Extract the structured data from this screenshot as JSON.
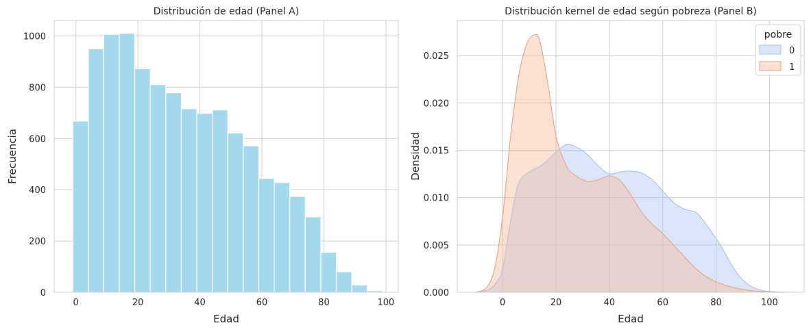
{
  "chart_data": [
    {
      "type": "bar",
      "title": "Distribución de edad (Panel A)",
      "xlabel": "Edad",
      "ylabel": "Frecuencia",
      "xlim": [
        -7,
        104
      ],
      "ylim": [
        0,
        1060
      ],
      "xticks": [
        0,
        20,
        40,
        60,
        80,
        100
      ],
      "yticks": [
        0,
        200,
        400,
        600,
        800,
        1000
      ],
      "grid": true,
      "bar_color": "#A4D8EE",
      "bins": [
        {
          "start": -1,
          "end": 4,
          "value": 668
        },
        {
          "start": 4,
          "end": 9,
          "value": 950
        },
        {
          "start": 9,
          "end": 14,
          "value": 1006
        },
        {
          "start": 14,
          "end": 19,
          "value": 1010
        },
        {
          "start": 19,
          "end": 24,
          "value": 872
        },
        {
          "start": 24,
          "end": 29,
          "value": 810
        },
        {
          "start": 29,
          "end": 34,
          "value": 778
        },
        {
          "start": 34,
          "end": 39,
          "value": 716
        },
        {
          "start": 39,
          "end": 44,
          "value": 698
        },
        {
          "start": 44,
          "end": 49,
          "value": 711
        },
        {
          "start": 49,
          "end": 54,
          "value": 621
        },
        {
          "start": 54,
          "end": 59,
          "value": 571
        },
        {
          "start": 59,
          "end": 64,
          "value": 444
        },
        {
          "start": 64,
          "end": 69,
          "value": 428
        },
        {
          "start": 69,
          "end": 74,
          "value": 374
        },
        {
          "start": 74,
          "end": 79,
          "value": 294
        },
        {
          "start": 79,
          "end": 84,
          "value": 156
        },
        {
          "start": 84,
          "end": 89,
          "value": 80
        },
        {
          "start": 89,
          "end": 94,
          "value": 28
        },
        {
          "start": 94,
          "end": 99,
          "value": 6
        }
      ]
    },
    {
      "type": "area",
      "title": "Distribución kernel de edad según pobreza (Panel B)",
      "xlabel": "Edad",
      "ylabel": "Densidad",
      "xlim": [
        -17,
        113
      ],
      "ylim": [
        0,
        0.0287
      ],
      "xticks": [
        0,
        20,
        40,
        60,
        80,
        100
      ],
      "ytick_labels": [
        "0.000",
        "0.005",
        "0.010",
        "0.015",
        "0.020",
        "0.025"
      ],
      "yticks": [
        0,
        0.005,
        0.01,
        0.015,
        0.02,
        0.025
      ],
      "grid": true,
      "legend": {
        "title": "pobre",
        "position": "top-right"
      },
      "series": [
        {
          "name": "0",
          "fill": "#A4C0F5",
          "line": "#A4C0F5",
          "x": [
            -10,
            -5,
            -2,
            0,
            3,
            6,
            10,
            15,
            20,
            24,
            28,
            32,
            36,
            40,
            44,
            48,
            52,
            56,
            60,
            64,
            68,
            72,
            74,
            78,
            82,
            86,
            90,
            94,
            98,
            102,
            106,
            110
          ],
          "y": [
            0,
            0.0003,
            0.0012,
            0.0025,
            0.0075,
            0.0115,
            0.0127,
            0.0135,
            0.0148,
            0.0156,
            0.0153,
            0.0145,
            0.0133,
            0.0125,
            0.0127,
            0.0128,
            0.0126,
            0.0119,
            0.0107,
            0.0095,
            0.0088,
            0.0085,
            0.008,
            0.0065,
            0.0048,
            0.0028,
            0.0013,
            0.0005,
            0.00015,
            5e-05,
            1e-05,
            0
          ]
        },
        {
          "name": "1",
          "fill": "#F5B393",
          "line": "#E9A07F",
          "x": [
            -10,
            -6,
            -3,
            0,
            3,
            6,
            9,
            12,
            14,
            17,
            20,
            24,
            28,
            32,
            36,
            40,
            44,
            48,
            52,
            56,
            60,
            64,
            68,
            72,
            76,
            80,
            84,
            88,
            92,
            96,
            100,
            104
          ],
          "y": [
            0,
            0.0005,
            0.0025,
            0.008,
            0.0165,
            0.0228,
            0.0262,
            0.0272,
            0.0265,
            0.022,
            0.0165,
            0.0133,
            0.0122,
            0.0117,
            0.0119,
            0.0123,
            0.0118,
            0.0103,
            0.0085,
            0.0072,
            0.0062,
            0.005,
            0.0038,
            0.0026,
            0.0017,
            0.0011,
            0.0007,
            0.0004,
            0.0002,
            0.0001,
            3e-05,
            0
          ]
        }
      ]
    }
  ]
}
